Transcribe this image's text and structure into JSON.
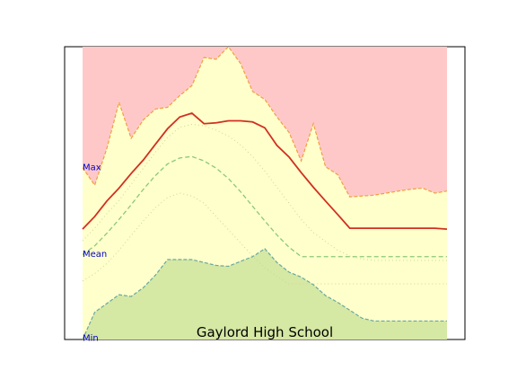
{
  "chart_data": {
    "type": "area",
    "title": "Gaylord High School",
    "xlabel": "",
    "ylabel": "",
    "xlim": [
      0,
      31
    ],
    "ylim": [
      0,
      100
    ],
    "grid": false,
    "legend": "none",
    "y_labels": [
      {
        "text": "Max",
        "y": 59
      },
      {
        "text": "Mean",
        "y": 29.5
      },
      {
        "text": "Min",
        "y": 0.7
      }
    ],
    "x": [
      0,
      1,
      2,
      3,
      4,
      5,
      6,
      7,
      8,
      9,
      10,
      11,
      12,
      13,
      14,
      15,
      16,
      17,
      18,
      19,
      20,
      21,
      22,
      23,
      24,
      25,
      26,
      27,
      28,
      29,
      30
    ],
    "series": [
      {
        "role": "upper_area",
        "values": [
          58.7,
          52.7,
          65.3,
          81.0,
          68.7,
          75.0,
          78.7,
          79.3,
          83.3,
          86.7,
          96.3,
          95.7,
          100.0,
          94.3,
          84.7,
          82.0,
          76.0,
          70.7,
          61.0,
          73.7,
          59.0,
          56.3,
          48.7,
          49.0,
          49.3,
          50.0,
          50.7,
          51.3,
          51.7,
          50.0,
          50.7
        ]
      },
      {
        "role": "max_line",
        "values": [
          37.7,
          42.0,
          47.3,
          51.7,
          56.7,
          61.3,
          66.7,
          72.0,
          76.0,
          77.3,
          73.7,
          74.0,
          74.7,
          74.7,
          74.3,
          72.3,
          66.3,
          62.3,
          57.0,
          52.0,
          47.3,
          42.7,
          38.0,
          38.0,
          38.0,
          38.0,
          38.0,
          38.0,
          38.0,
          38.0,
          37.7
        ]
      },
      {
        "role": "upper_dotted",
        "values": [
          33.7,
          38.0,
          43.0,
          47.5,
          53.0,
          58.5,
          64.0,
          69.0,
          72.5,
          73.5,
          73.0,
          71.5,
          69.5,
          66.5,
          62.5,
          57.5,
          52.0,
          46.5,
          41.0,
          36.5,
          33.5,
          30.5,
          28.5,
          27.5,
          27.0,
          27.0,
          27.0,
          27.0,
          27.0,
          27.0,
          27.0
        ]
      },
      {
        "role": "mean_line",
        "values": [
          29.0,
          32.0,
          36.3,
          41.0,
          46.0,
          51.3,
          56.0,
          60.0,
          62.0,
          62.5,
          61.0,
          58.5,
          55.0,
          50.5,
          45.5,
          40.5,
          35.7,
          31.5,
          28.3,
          28.3,
          28.3,
          28.3,
          28.3,
          28.3,
          28.3,
          28.3,
          28.3,
          28.3,
          28.3,
          28.3,
          28.3
        ]
      },
      {
        "role": "lower_dotted",
        "values": [
          20.0,
          22.5,
          26.0,
          30.5,
          35.5,
          40.5,
          45.0,
          48.5,
          50.0,
          49.0,
          46.5,
          42.0,
          37.5,
          33.0,
          28.5,
          24.5,
          21.5,
          19.0,
          19.0,
          19.0,
          19.0,
          19.0,
          19.0,
          19.0,
          19.0,
          19.0,
          19.0,
          19.0,
          19.0,
          19.0,
          19.0
        ]
      },
      {
        "role": "min_area",
        "values": [
          0,
          9.3,
          12.3,
          15.3,
          14.7,
          17.7,
          22.0,
          27.3,
          27.3,
          27.3,
          26.3,
          25.3,
          25.0,
          26.7,
          28.3,
          31.0,
          26.3,
          23.0,
          21.3,
          18.7,
          15.0,
          12.7,
          10.0,
          7.3,
          6.3,
          6.3,
          6.3,
          6.3,
          6.3,
          6.3,
          6.3
        ]
      }
    ]
  }
}
